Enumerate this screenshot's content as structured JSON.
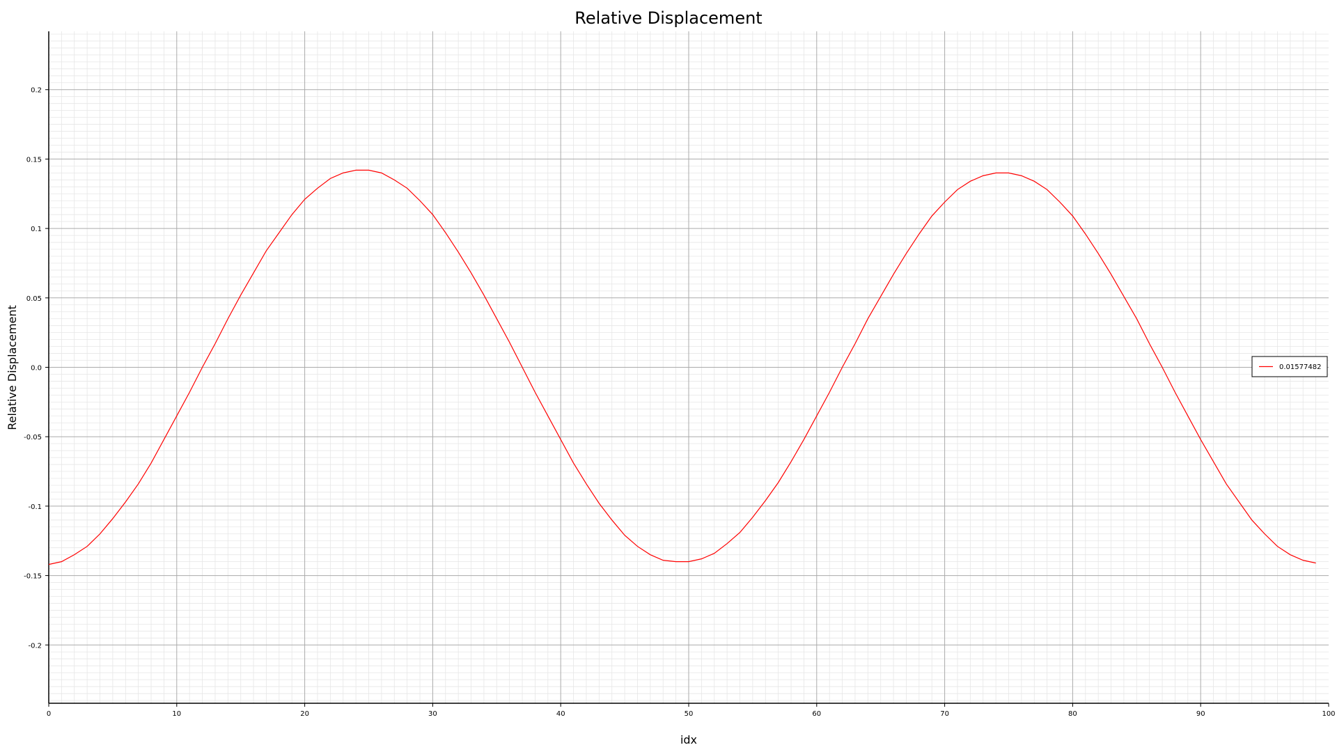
{
  "chart_data": {
    "type": "line",
    "title": "Relative Displacement",
    "xlabel": "idx",
    "ylabel": "Relative Displacement",
    "xlim": [
      0,
      100
    ],
    "ylim": [
      -0.242,
      0.242
    ],
    "xticks": [
      "0",
      "10",
      "20",
      "30",
      "40",
      "50",
      "60",
      "70",
      "80",
      "90",
      "100"
    ],
    "yticks": [
      "-0.2",
      "-0.15",
      "-0.1",
      "-0.05",
      "0.0",
      "0.05",
      "0.1",
      "0.15",
      "0.2"
    ],
    "grid": true,
    "legend_position": "right",
    "series": [
      {
        "name": "0.01577482",
        "color": "#ff0000",
        "x": [
          0,
          1,
          2,
          3,
          4,
          5,
          6,
          7,
          8,
          9,
          10,
          11,
          12,
          13,
          14,
          15,
          16,
          17,
          18,
          19,
          20,
          21,
          22,
          23,
          24,
          25,
          26,
          27,
          28,
          29,
          30,
          31,
          32,
          33,
          34,
          35,
          36,
          37,
          38,
          39,
          40,
          41,
          42,
          43,
          44,
          45,
          46,
          47,
          48,
          49,
          50,
          51,
          52,
          53,
          54,
          55,
          56,
          57,
          58,
          59,
          60,
          61,
          62,
          63,
          64,
          65,
          66,
          67,
          68,
          69,
          70,
          71,
          72,
          73,
          74,
          75,
          76,
          77,
          78,
          79,
          80,
          81,
          82,
          83,
          84,
          85,
          86,
          87,
          88,
          89,
          90,
          91,
          92,
          93,
          94,
          95,
          96,
          97,
          98,
          99
        ],
        "values": [
          -0.142,
          -0.14,
          -0.135,
          -0.129,
          -0.12,
          -0.109,
          -0.097,
          -0.084,
          -0.069,
          -0.052,
          -0.035,
          -0.018,
          0.0,
          0.017,
          0.035,
          0.052,
          0.068,
          0.084,
          0.097,
          0.11,
          0.121,
          0.129,
          0.136,
          0.14,
          0.142,
          0.142,
          0.14,
          0.135,
          0.129,
          0.12,
          0.11,
          0.097,
          0.083,
          0.068,
          0.052,
          0.035,
          0.018,
          0.0,
          -0.018,
          -0.035,
          -0.052,
          -0.069,
          -0.084,
          -0.098,
          -0.11,
          -0.121,
          -0.129,
          -0.135,
          -0.139,
          -0.14,
          -0.14,
          -0.138,
          -0.134,
          -0.127,
          -0.119,
          -0.108,
          -0.096,
          -0.083,
          -0.068,
          -0.052,
          -0.035,
          -0.018,
          0.0,
          0.017,
          0.035,
          0.051,
          0.067,
          0.082,
          0.096,
          0.109,
          0.119,
          0.128,
          0.134,
          0.138,
          0.14,
          0.14,
          0.138,
          0.134,
          0.128,
          0.119,
          0.109,
          0.096,
          0.082,
          0.067,
          0.051,
          0.035,
          0.017,
          0.0,
          -0.018,
          -0.035,
          -0.052,
          -0.068,
          -0.084,
          -0.097,
          -0.11,
          -0.12,
          -0.129,
          -0.135,
          -0.139,
          -0.141
        ]
      }
    ]
  }
}
